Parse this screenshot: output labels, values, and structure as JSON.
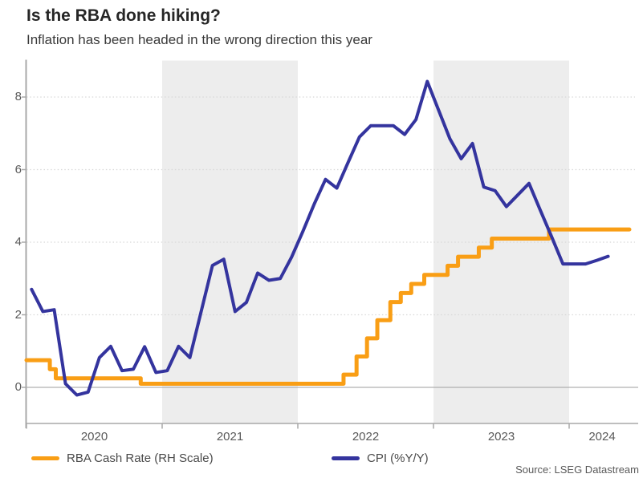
{
  "header": {
    "title": "Is the RBA done hiking?",
    "subtitle": "Inflation has been headed in the wrong direction this year"
  },
  "footer": {
    "source": "Source: LSEG Datastream"
  },
  "colors": {
    "band": "#EDEDED",
    "grid": "#D8D8D8",
    "zero_line": "#B0B0B0",
    "axis": "#A8A8A8",
    "tick_label": "#595959",
    "rba_orange": "#F99E15",
    "cpi_navy": "#34349E"
  },
  "chart_data": {
    "type": "line",
    "title": "Is the RBA done hiking?",
    "subtitle": "Inflation has been headed in the wrong direction this year",
    "xlabel": "",
    "ylabel": "",
    "ylim": [
      -1,
      9
    ],
    "y_ticks": [
      0,
      2,
      4,
      6,
      8
    ],
    "x_years": [
      2020,
      2021,
      2022,
      2023,
      2024
    ],
    "x_range": [
      2020.0,
      2024.5
    ],
    "grid": "dotted horizontal gridlines, solid zero line",
    "legend_position": "bottom",
    "shaded_year_bands": [
      [
        2021,
        2022
      ],
      [
        2023,
        2024
      ]
    ],
    "series": [
      {
        "name": "RBA Cash Rate (RH Scale)",
        "color": "#F99E15",
        "style": "step",
        "unit": "%",
        "points": [
          {
            "t": 2020.0,
            "v": 0.75
          },
          {
            "t": 2020.172,
            "v": 0.5
          },
          {
            "t": 2020.216,
            "v": 0.25
          },
          {
            "t": 2020.842,
            "v": 0.1
          },
          {
            "t": 2022.337,
            "v": 0.35
          },
          {
            "t": 2022.433,
            "v": 0.85
          },
          {
            "t": 2022.51,
            "v": 1.35
          },
          {
            "t": 2022.586,
            "v": 1.85
          },
          {
            "t": 2022.682,
            "v": 2.35
          },
          {
            "t": 2022.759,
            "v": 2.6
          },
          {
            "t": 2022.836,
            "v": 2.85
          },
          {
            "t": 2022.932,
            "v": 3.1
          },
          {
            "t": 2023.104,
            "v": 3.35
          },
          {
            "t": 2023.181,
            "v": 3.6
          },
          {
            "t": 2023.334,
            "v": 3.85
          },
          {
            "t": 2023.43,
            "v": 4.1
          },
          {
            "t": 2023.852,
            "v": 4.35
          }
        ],
        "end_t": 2024.44,
        "end_value": 4.35
      },
      {
        "name": "CPI (%Y/Y)",
        "color": "#34349E",
        "style": "line",
        "unit": "%",
        "start_month": "2020-01",
        "monthly_values": [
          2.7,
          2.09,
          2.14,
          0.1,
          -0.21,
          -0.13,
          0.82,
          1.13,
          0.46,
          0.5,
          1.12,
          0.41,
          0.46,
          1.13,
          0.82,
          2.09,
          3.36,
          3.53,
          2.09,
          2.34,
          3.15,
          2.95,
          3.0,
          3.59,
          4.3,
          5.05,
          5.73,
          5.49,
          6.2,
          6.9,
          7.21,
          7.21,
          7.21,
          6.97,
          7.38,
          8.43,
          7.64,
          6.85,
          6.3,
          6.72,
          5.52,
          5.42,
          4.98,
          5.3,
          5.62,
          4.88,
          4.15,
          3.4,
          3.4,
          3.4,
          3.5,
          3.61
        ]
      }
    ]
  }
}
